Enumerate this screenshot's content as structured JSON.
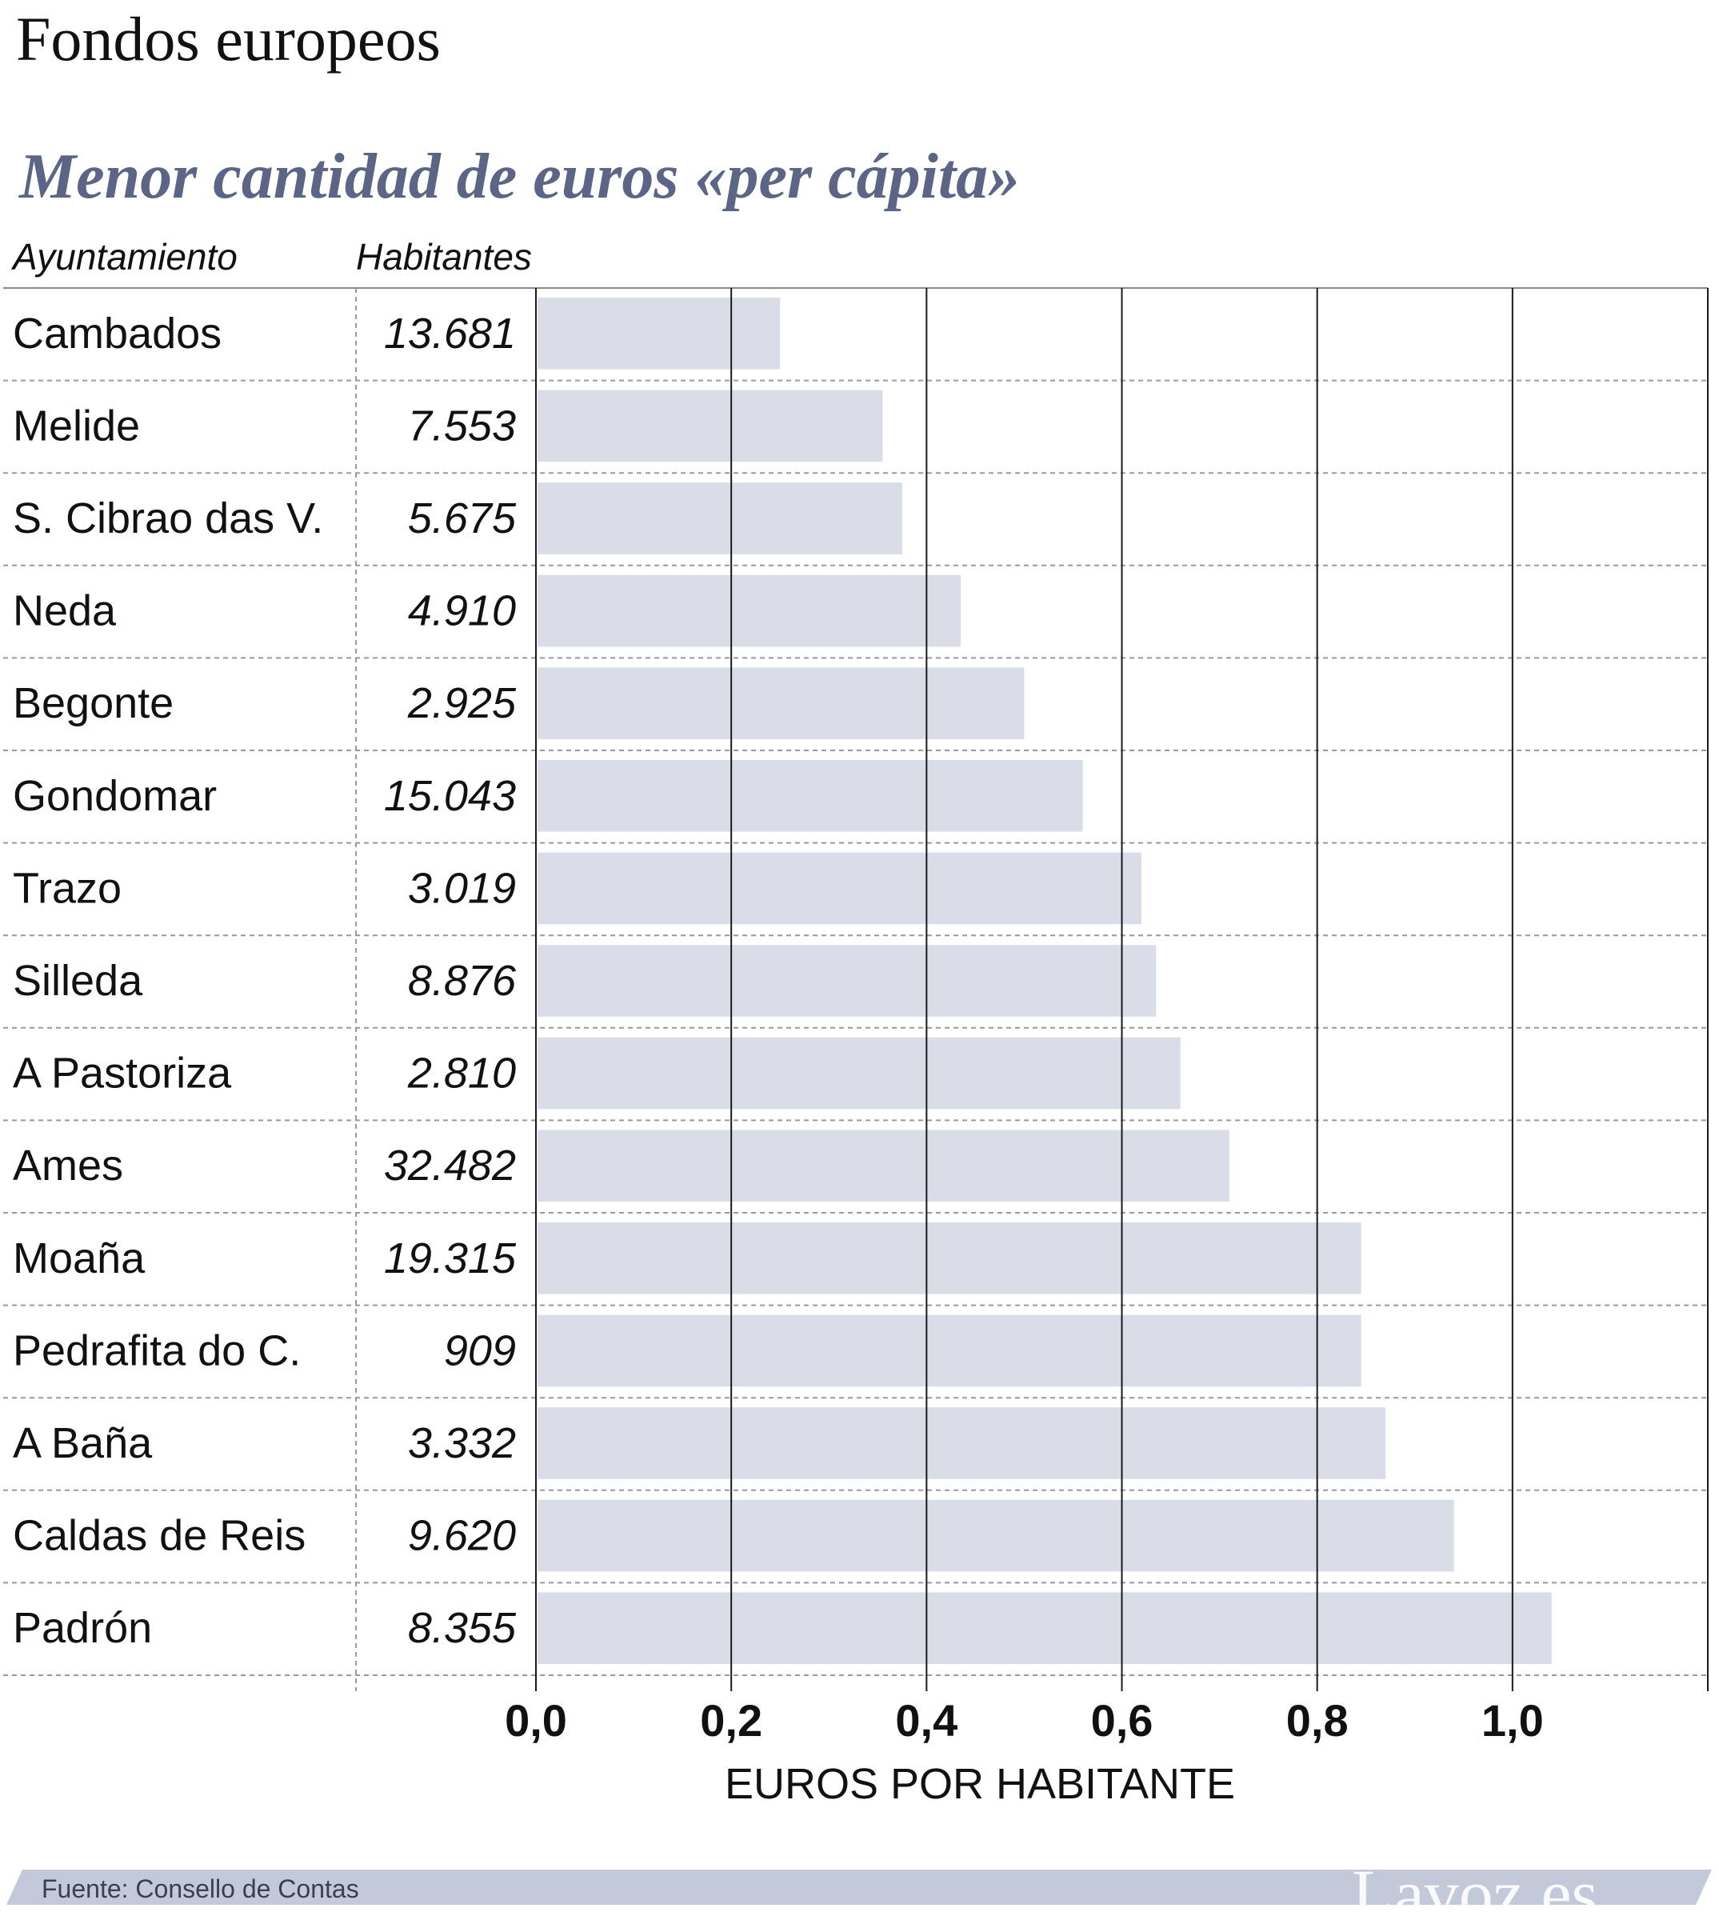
{
  "title": "Fondos europeos",
  "subtitle": "Menor cantidad de euros «per cápita»",
  "columns": {
    "name_header": "Ayuntamiento",
    "population_header": "Habitantes"
  },
  "colors": {
    "bar": "#d8dde8",
    "subtitle": "#5c6585",
    "footer_band": "#c4c9d9",
    "grid": "#1a1a1a",
    "text": "#111111"
  },
  "chart_data": {
    "type": "bar",
    "orientation": "horizontal",
    "categories": [
      "Cambados",
      "Melide",
      "S. Cibrao das V.",
      "Neda",
      "Begonte",
      "Gondomar",
      "Trazo",
      "Silleda",
      "A Pastoriza",
      "Ames",
      "Moaña",
      "Pedrafita do C.",
      "A Baña",
      "Caldas de Reis",
      "Padrón"
    ],
    "populations": [
      "13.681",
      "7.553",
      "5.675",
      "4.910",
      "2.925",
      "15.043",
      "3.019",
      "8.876",
      "2.810",
      "32.482",
      "19.315",
      "909",
      "3.332",
      "9.620",
      "8.355"
    ],
    "values": [
      0.25,
      0.355,
      0.375,
      0.435,
      0.5,
      0.56,
      0.62,
      0.635,
      0.66,
      0.71,
      0.845,
      0.845,
      0.87,
      0.94,
      1.04
    ],
    "xlim": [
      0,
      1.2
    ],
    "xticks": [
      0.0,
      0.2,
      0.4,
      0.6,
      0.8,
      1.0,
      1.2
    ],
    "xtick_labels": [
      "0,0",
      "0,2",
      "0,4",
      "0,6",
      "0,8",
      "1,0",
      ""
    ],
    "xlabel": "EUROS POR HABITANTE",
    "grid": true
  },
  "footer": {
    "source": "Fuente: Consello de Contas",
    "brand": "Lavoz.es"
  }
}
